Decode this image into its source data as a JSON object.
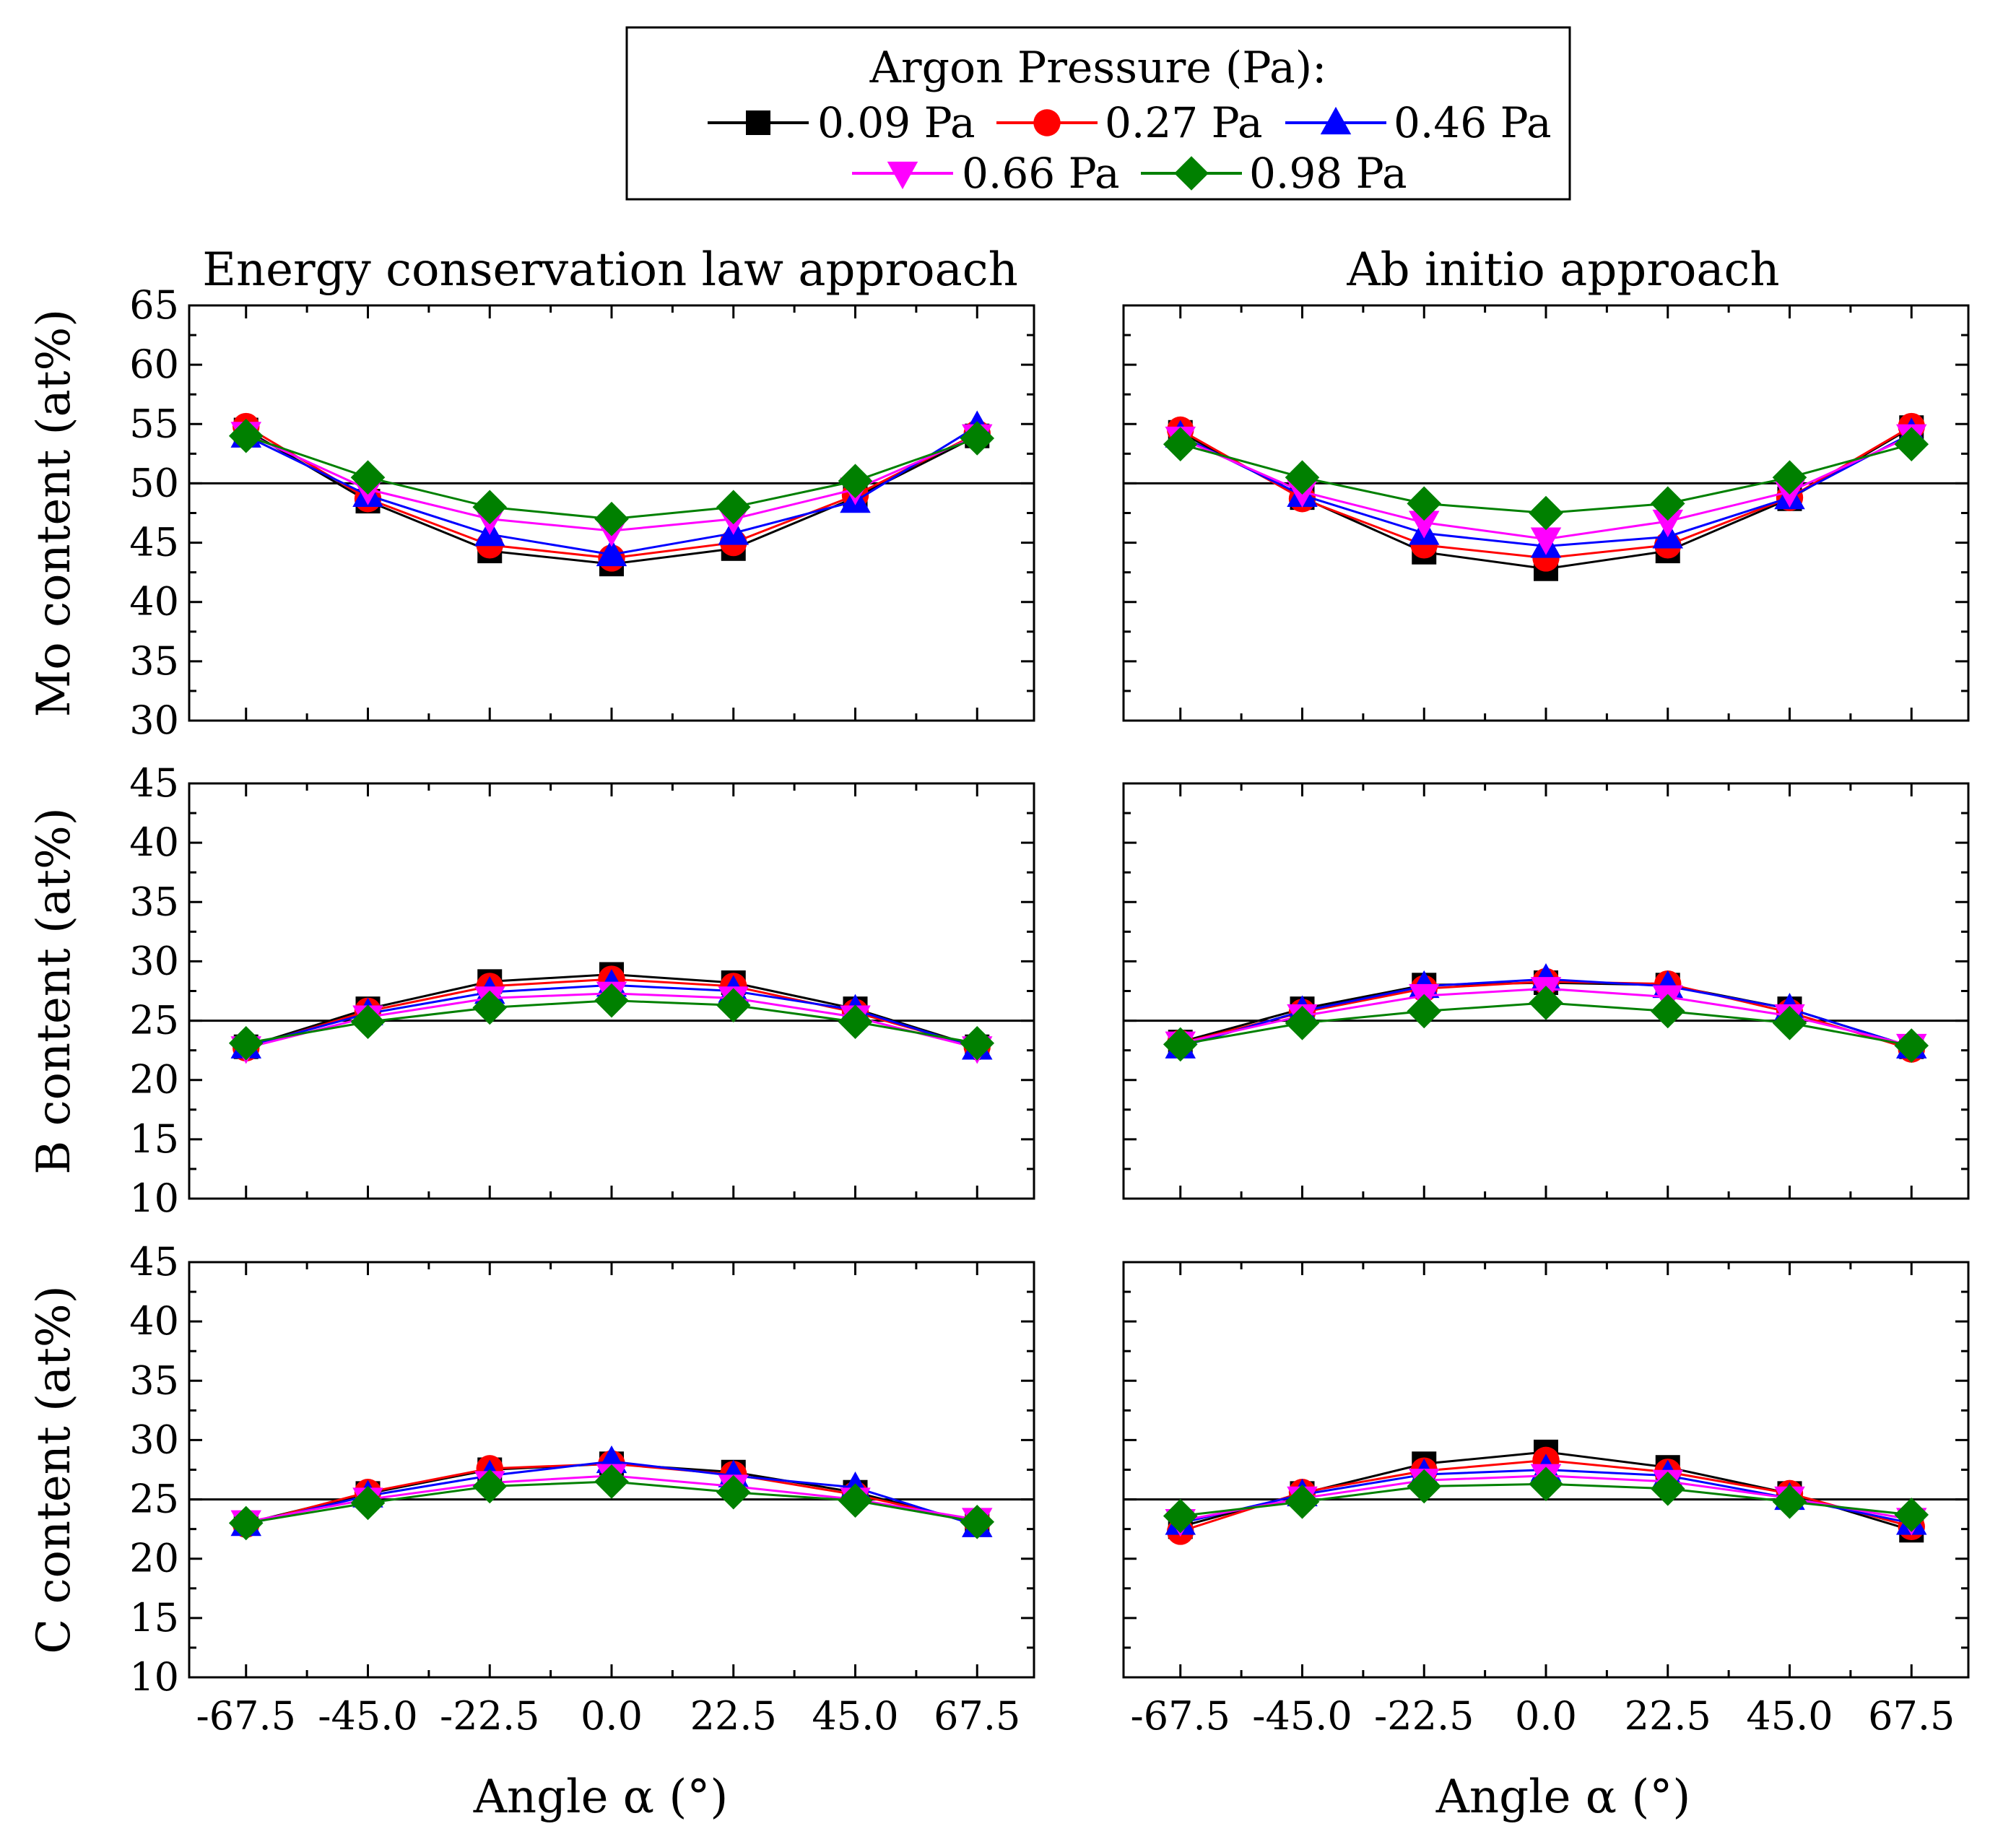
{
  "legend": {
    "title": "Argon Pressure (Pa):",
    "entries": [
      {
        "label": "0.09 Pa",
        "color": "#000000",
        "marker": "square"
      },
      {
        "label": "0.27 Pa",
        "color": "#ff0000",
        "marker": "circle"
      },
      {
        "label": "0.46 Pa",
        "color": "#0000ff",
        "marker": "triangle-up"
      },
      {
        "label": "0.66 Pa",
        "color": "#ff00ff",
        "marker": "triangle-down"
      },
      {
        "label": "0.98 Pa",
        "color": "#008000",
        "marker": "diamond"
      }
    ]
  },
  "columns": [
    "Energy conservation law approach",
    "Ab initio approach"
  ],
  "xlabel": "Angle α (°)",
  "chart_data": [
    {
      "type": "line",
      "title": "Energy conservation law approach",
      "ylabel": "Mo content (at%)",
      "ylim": [
        30,
        65
      ],
      "yticks": [
        30,
        35,
        40,
        45,
        50,
        55,
        60,
        65
      ],
      "reference_line": 50,
      "x": [
        -67.5,
        -45.0,
        -22.5,
        0.0,
        22.5,
        45.0,
        67.5
      ],
      "xtick_labels": [
        "-67.5",
        "-45.0",
        "-22.5",
        "0.0",
        "22.5",
        "45.0",
        "67.5"
      ],
      "series": [
        {
          "name": "0.09 Pa",
          "values": [
            54.5,
            48.5,
            44.3,
            43.2,
            44.5,
            48.8,
            54.0
          ]
        },
        {
          "name": "0.27 Pa",
          "values": [
            54.8,
            48.7,
            44.8,
            43.7,
            45.0,
            49.0,
            54.2
          ]
        },
        {
          "name": "0.46 Pa",
          "values": [
            54.0,
            49.0,
            45.7,
            44.0,
            45.8,
            48.5,
            54.8
          ]
        },
        {
          "name": "0.66 Pa",
          "values": [
            54.2,
            49.5,
            47.0,
            46.0,
            47.0,
            49.5,
            54.0
          ]
        },
        {
          "name": "0.98 Pa",
          "values": [
            54.0,
            50.5,
            48.0,
            47.0,
            48.0,
            50.2,
            53.8
          ]
        }
      ]
    },
    {
      "type": "line",
      "title": "Ab initio approach",
      "ylabel": "Mo content (at%)",
      "ylim": [
        30,
        65
      ],
      "yticks": [
        30,
        35,
        40,
        45,
        50,
        55,
        60,
        65
      ],
      "reference_line": 50,
      "x": [
        -67.5,
        -45.0,
        -22.5,
        0.0,
        22.5,
        45.0,
        67.5
      ],
      "xtick_labels": [
        "-67.5",
        "-45.0",
        "-22.5",
        "0.0",
        "22.5",
        "45.0",
        "67.5"
      ],
      "series": [
        {
          "name": "0.09 Pa",
          "values": [
            54.3,
            48.8,
            44.2,
            42.8,
            44.3,
            48.7,
            54.7
          ]
        },
        {
          "name": "0.27 Pa",
          "values": [
            54.5,
            48.7,
            44.8,
            43.7,
            44.8,
            48.8,
            54.8
          ]
        },
        {
          "name": "0.46 Pa",
          "values": [
            54.0,
            49.0,
            45.8,
            44.7,
            45.5,
            48.8,
            54.2
          ]
        },
        {
          "name": "0.66 Pa",
          "values": [
            53.8,
            49.3,
            46.7,
            45.3,
            46.8,
            49.3,
            54.0
          ]
        },
        {
          "name": "0.98 Pa",
          "values": [
            53.3,
            50.5,
            48.3,
            47.5,
            48.3,
            50.5,
            53.3
          ]
        }
      ]
    },
    {
      "type": "line",
      "title": "Energy conservation law approach",
      "ylabel": "B content (at%)",
      "ylim": [
        10,
        45
      ],
      "yticks": [
        10,
        15,
        20,
        25,
        30,
        35,
        40,
        45
      ],
      "reference_line": 25,
      "x": [
        -67.5,
        -45.0,
        -22.5,
        0.0,
        22.5,
        45.0,
        67.5
      ],
      "xtick_labels": [
        "-67.5",
        "-45.0",
        "-22.5",
        "0.0",
        "22.5",
        "45.0",
        "67.5"
      ],
      "series": [
        {
          "name": "0.09 Pa",
          "values": [
            22.8,
            26.0,
            28.3,
            28.9,
            28.2,
            26.0,
            22.8
          ]
        },
        {
          "name": "0.27 Pa",
          "values": [
            22.7,
            25.8,
            27.9,
            28.5,
            27.9,
            25.7,
            22.8
          ]
        },
        {
          "name": "0.46 Pa",
          "values": [
            22.8,
            25.6,
            27.4,
            28.0,
            27.5,
            25.9,
            22.7
          ]
        },
        {
          "name": "0.66 Pa",
          "values": [
            22.7,
            25.3,
            26.9,
            27.3,
            26.9,
            25.3,
            22.7
          ]
        },
        {
          "name": "0.98 Pa",
          "values": [
            23.1,
            24.9,
            26.1,
            26.7,
            26.3,
            24.9,
            23.1
          ]
        }
      ]
    },
    {
      "type": "line",
      "title": "Ab initio approach",
      "ylabel": "B content (at%)",
      "ylim": [
        10,
        45
      ],
      "yticks": [
        10,
        15,
        20,
        25,
        30,
        35,
        40,
        45
      ],
      "reference_line": 25,
      "x": [
        -67.5,
        -45.0,
        -22.5,
        0.0,
        22.5,
        45.0,
        67.5
      ],
      "xtick_labels": [
        "-67.5",
        "-45.0",
        "-22.5",
        "0.0",
        "22.5",
        "45.0",
        "67.5"
      ],
      "series": [
        {
          "name": "0.09 Pa",
          "values": [
            23.2,
            26.0,
            28.0,
            28.2,
            28.0,
            26.0,
            22.8
          ]
        },
        {
          "name": "0.27 Pa",
          "values": [
            23.1,
            25.7,
            27.7,
            28.3,
            28.1,
            25.7,
            22.6
          ]
        },
        {
          "name": "0.46 Pa",
          "values": [
            22.8,
            25.8,
            27.9,
            28.5,
            27.9,
            26.0,
            22.8
          ]
        },
        {
          "name": "0.66 Pa",
          "values": [
            23.1,
            25.4,
            27.1,
            27.7,
            27.0,
            25.4,
            22.9
          ]
        },
        {
          "name": "0.98 Pa",
          "values": [
            23.0,
            24.8,
            25.8,
            26.5,
            25.8,
            24.8,
            22.9
          ]
        }
      ]
    },
    {
      "type": "line",
      "title": "Energy conservation law approach",
      "ylabel": "C content (at%)",
      "ylim": [
        10,
        45
      ],
      "yticks": [
        10,
        15,
        20,
        25,
        30,
        35,
        40,
        45
      ],
      "reference_line": 25,
      "x": [
        -67.5,
        -45.0,
        -22.5,
        0.0,
        22.5,
        45.0,
        67.5
      ],
      "xtick_labels": [
        "-67.5",
        "-45.0",
        "-22.5",
        "0.0",
        "22.5",
        "45.0",
        "67.5"
      ],
      "series": [
        {
          "name": "0.09 Pa",
          "values": [
            23.0,
            25.5,
            27.5,
            28.0,
            27.3,
            25.6,
            23.0
          ]
        },
        {
          "name": "0.27 Pa",
          "values": [
            22.9,
            25.6,
            27.6,
            28.0,
            27.1,
            25.4,
            23.1
          ]
        },
        {
          "name": "0.46 Pa",
          "values": [
            22.9,
            25.3,
            27.0,
            28.2,
            27.0,
            26.0,
            22.8
          ]
        },
        {
          "name": "0.66 Pa",
          "values": [
            23.1,
            25.0,
            26.4,
            27.0,
            26.1,
            25.0,
            23.3
          ]
        },
        {
          "name": "0.98 Pa",
          "values": [
            23.0,
            24.7,
            26.1,
            26.5,
            25.6,
            24.9,
            23.1
          ]
        }
      ]
    },
    {
      "type": "line",
      "title": "Ab initio approach",
      "ylabel": "C content (at%)",
      "ylim": [
        10,
        45
      ],
      "yticks": [
        10,
        15,
        20,
        25,
        30,
        35,
        40,
        45
      ],
      "reference_line": 25,
      "x": [
        -67.5,
        -45.0,
        -22.5,
        0.0,
        22.5,
        45.0,
        67.5
      ],
      "xtick_labels": [
        "-67.5",
        "-45.0",
        "-22.5",
        "0.0",
        "22.5",
        "45.0",
        "67.5"
      ],
      "series": [
        {
          "name": "0.09 Pa",
          "values": [
            22.7,
            25.5,
            28.0,
            29.0,
            27.7,
            25.5,
            22.4
          ]
        },
        {
          "name": "0.27 Pa",
          "values": [
            22.3,
            25.6,
            27.4,
            28.3,
            27.3,
            25.5,
            22.7
          ]
        },
        {
          "name": "0.46 Pa",
          "values": [
            23.0,
            25.4,
            27.1,
            27.5,
            27.0,
            25.1,
            23.0
          ]
        },
        {
          "name": "0.66 Pa",
          "values": [
            23.2,
            25.1,
            26.6,
            27.0,
            26.5,
            25.1,
            23.3
          ]
        },
        {
          "name": "0.98 Pa",
          "values": [
            23.6,
            24.8,
            26.1,
            26.3,
            25.9,
            24.8,
            23.7
          ]
        }
      ]
    }
  ]
}
